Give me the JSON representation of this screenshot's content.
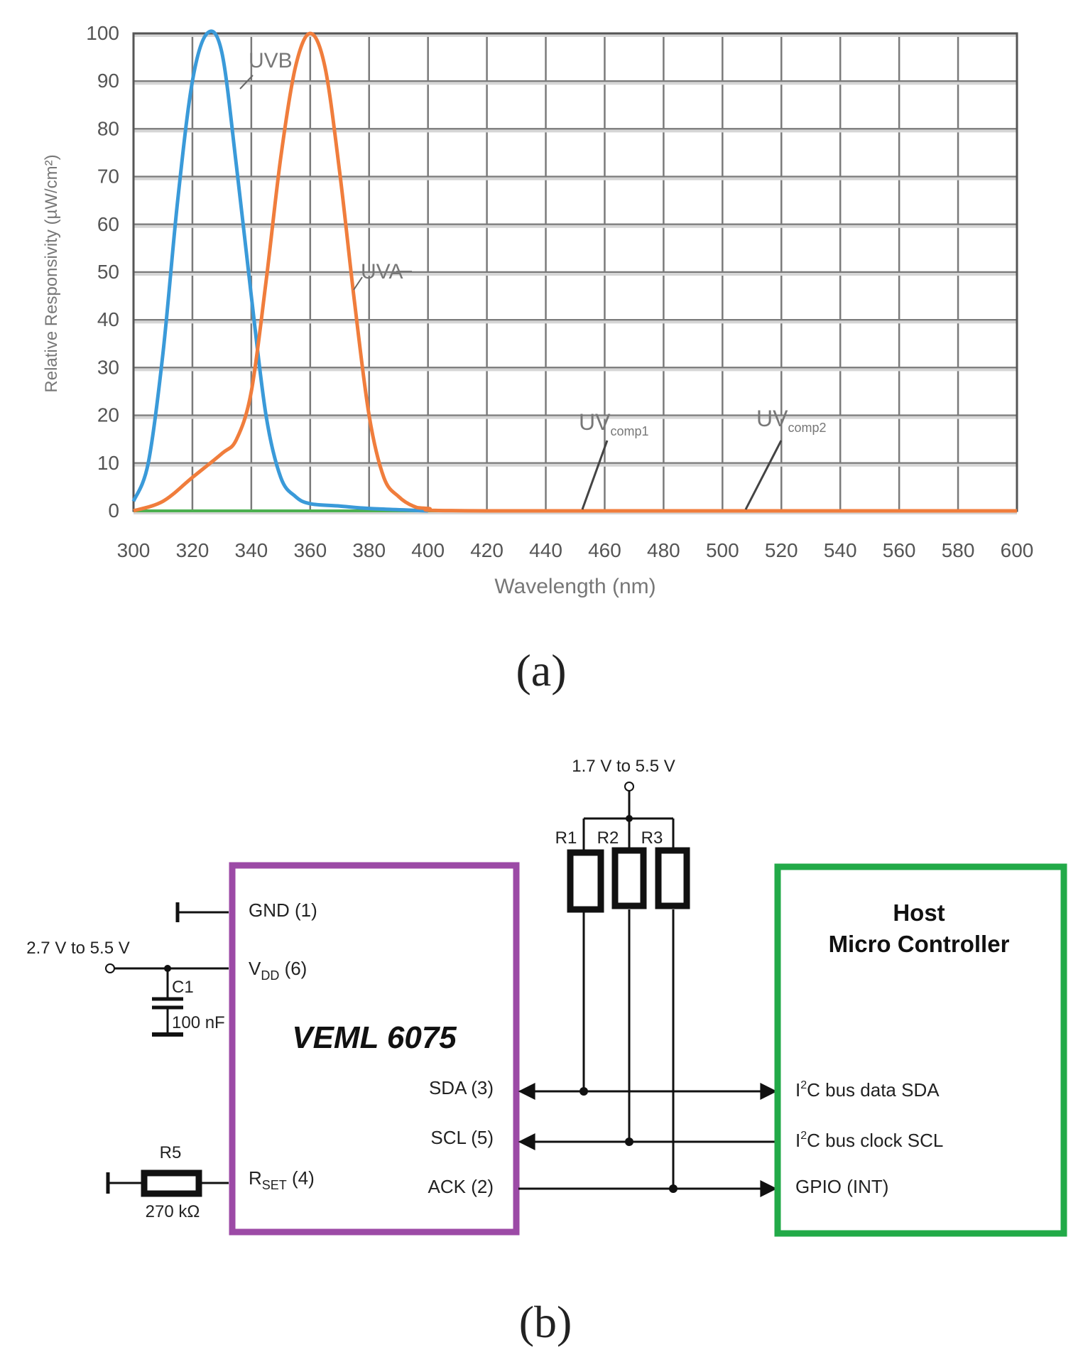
{
  "chart_data": {
    "type": "line",
    "title": "",
    "xlabel": "Wavelength (nm)",
    "ylabel": "Relative Responsivity (µW/cm²)",
    "xlim": [
      300,
      600
    ],
    "ylim": [
      0,
      100
    ],
    "x_ticks": [
      300,
      320,
      340,
      360,
      380,
      400,
      420,
      440,
      460,
      480,
      500,
      520,
      540,
      560,
      580,
      600
    ],
    "y_ticks": [
      0,
      10,
      20,
      30,
      40,
      50,
      60,
      70,
      80,
      90,
      100
    ],
    "grid": true,
    "series": [
      {
        "name": "UVB",
        "color": "#3a9ad9",
        "x": [
          300,
          305,
          310,
          315,
          320,
          325,
          330,
          335,
          340,
          345,
          350,
          355,
          360,
          370,
          380,
          400
        ],
        "values": [
          2,
          10,
          33,
          65,
          90,
          100,
          96,
          72,
          45,
          20,
          7,
          3,
          1.5,
          1,
          0.5,
          0
        ]
      },
      {
        "name": "UVA",
        "color": "#f07d3c",
        "x": [
          300,
          310,
          320,
          330,
          335,
          340,
          345,
          350,
          355,
          360,
          365,
          370,
          375,
          380,
          385,
          390,
          395,
          400,
          420,
          600
        ],
        "values": [
          0,
          2,
          7,
          12,
          15,
          25,
          48,
          74,
          93,
          100,
          93,
          71,
          44,
          20,
          7,
          3,
          1,
          0.5,
          0,
          0
        ]
      },
      {
        "name": "UVcomp",
        "color": "#4cb050",
        "x": [
          300,
          600
        ],
        "values": [
          0,
          0
        ]
      }
    ],
    "annotations": {
      "uvb": "UVB",
      "uva": "UVA",
      "uvcomp1_main": "UV",
      "uvcomp1_sub": "comp1",
      "uvcomp2_main": "UV",
      "uvcomp2_sub": "comp2"
    }
  },
  "captions": {
    "a": "(a)",
    "b": "(b)"
  },
  "schematic": {
    "supply_top": "1.7 V to 5.5 V",
    "supply_left": "2.7 V to 5.5 V",
    "r1": "R1",
    "r2": "R2",
    "r3": "R3",
    "r5": "R5",
    "r5_value": "270 kΩ",
    "c1": "C1",
    "c1_value": "100 nF",
    "chip_name": "VEML 6075",
    "chip_color": "#9c4aa6",
    "host_color": "#22aa48",
    "pins": {
      "gnd": "GND  (1)",
      "vdd_main": "V",
      "vdd_sub": "DD",
      "vdd_num": " (6)",
      "rset_main": "R",
      "rset_sub": "SET",
      "rset_num": " (4)",
      "sda": "SDA (3)",
      "scl": "SCL (5)",
      "ack": "ACK (2)"
    },
    "host": {
      "title_line1": "Host",
      "title_line2": "Micro Controller",
      "sda_pre": "I",
      "sda_sup": "2",
      "sda_post": "C bus data SDA",
      "scl_pre": "I",
      "scl_sup": "2",
      "scl_post": "C bus clock SCL",
      "gpio": "GPIO (INT)"
    }
  }
}
